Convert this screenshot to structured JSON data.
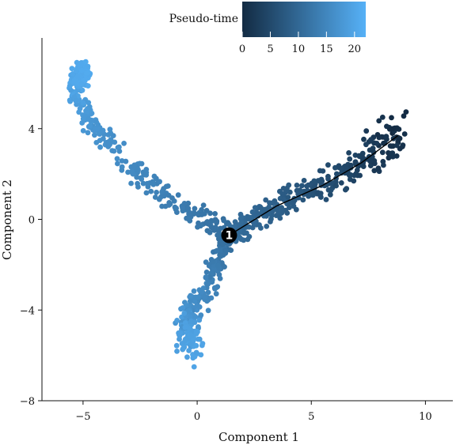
{
  "chart_data": {
    "type": "scatter",
    "title": "",
    "xlabel": "Component 1",
    "ylabel": "Component 2",
    "xlim": [
      -6.8,
      11.2
    ],
    "ylim": [
      -8,
      8
    ],
    "xticks": [
      -5,
      0,
      5,
      10
    ],
    "yticks": [
      -8,
      -4,
      0,
      4
    ],
    "xtick_labels": [
      "−5",
      "0",
      "5",
      "10"
    ],
    "ytick_labels": [
      "−8",
      "−4",
      "0",
      "4"
    ],
    "color_scale": {
      "title": "Pseudo-time",
      "min": 0,
      "max": 22,
      "ticks": [
        0,
        5,
        10,
        15,
        20
      ],
      "tick_labels": [
        "0",
        "5",
        "10",
        "15",
        "20"
      ],
      "low_color": "#132b43",
      "high_color": "#56b1f7"
    },
    "branch_point": {
      "label": "1",
      "x": 1.4,
      "y": -0.7
    },
    "trajectory_line": [
      {
        "x": 1.4,
        "y": -0.7
      },
      {
        "x": 3.5,
        "y": 0.6
      },
      {
        "x": 5.5,
        "y": 1.5
      },
      {
        "x": 7.2,
        "y": 2.5
      },
      {
        "x": 8.8,
        "y": 3.7
      }
    ],
    "branches": [
      {
        "name": "",
        "x": [
          8.9,
          7.8,
          6.5,
          5.0,
          3.5,
          2.2,
          1.4
        ],
        "y": [
          3.8,
          2.9,
          2.0,
          1.3,
          0.6,
          -0.1,
          -0.7
        ],
        "time": [
          0,
          2.5,
          4.5,
          6.5,
          8.5,
          10,
          11
        ]
      },
      {
        "name": "",
        "x": [
          1.4,
          -0.5,
          -2.5,
          -4.3,
          -5.3,
          -5.2,
          -4.8
        ],
        "y": [
          -0.7,
          0.4,
          1.9,
          3.8,
          5.4,
          6.3,
          6.5
        ],
        "time": [
          11,
          13,
          15,
          17,
          19,
          20.5,
          21
        ]
      },
      {
        "name": "",
        "x": [
          1.4,
          0.8,
          0.3,
          -0.4,
          -0.5,
          -0.1
        ],
        "y": [
          -0.7,
          -2.0,
          -3.2,
          -4.2,
          -5.0,
          -5.7
        ],
        "time": [
          11,
          13,
          15,
          17,
          19,
          20
        ]
      }
    ]
  }
}
